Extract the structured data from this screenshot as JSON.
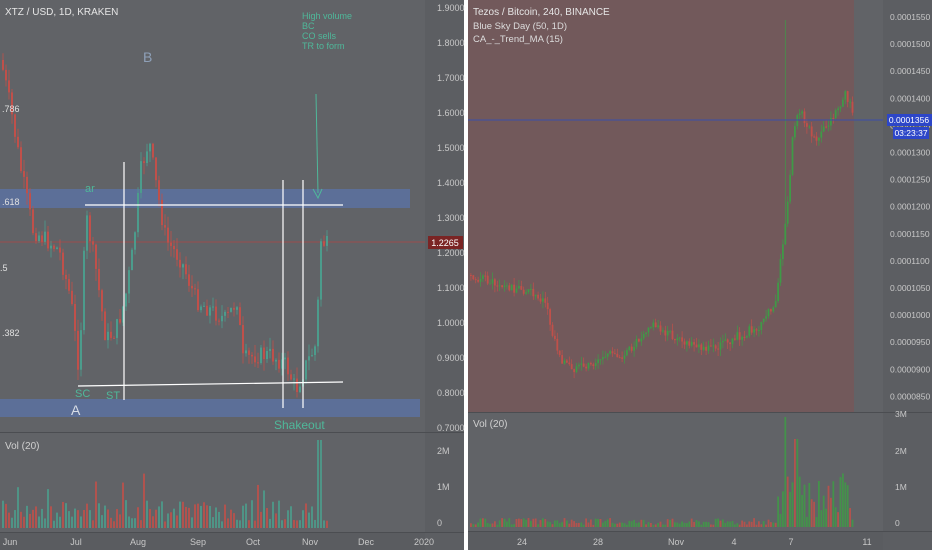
{
  "left_chart": {
    "title": "XTZ / USD, 1D, KRAKEN",
    "price_ticks": [
      "1.9000",
      "1.8000",
      "1.7000",
      "1.6000",
      "1.5000",
      "1.4000",
      "1.3000",
      "1.2000",
      "1.1000",
      "1.0000",
      "0.9000",
      "0.8000",
      "0.7000"
    ],
    "current_price": "1.2265",
    "fib_labels": [
      ".786",
      ".618",
      ".5",
      ".382"
    ],
    "annotations": {
      "B": "B",
      "A": "A",
      "ar": "ar",
      "sc": "SC",
      "st": "ST",
      "shakeout": "Shakeout",
      "note": [
        "High volume",
        "BC",
        "CO sells",
        "TR to form"
      ]
    },
    "volume_title": "Vol (20)",
    "volume_ticks": [
      "2M",
      "1M",
      "0"
    ],
    "x_ticks": [
      "Jun",
      "Jul",
      "Aug",
      "Sep",
      "Oct",
      "Nov",
      "Dec",
      "2020"
    ],
    "colors": {
      "up": "#4c9c8c",
      "down": "#c0504a",
      "zone": "#5b73a8",
      "text": "#9aa0a8"
    }
  },
  "right_chart": {
    "title": "Tezos / Bitcoin, 240, BINANCE",
    "indicators": [
      "Blue Sky Day (50, 1D)",
      "CA_-_Trend_MA (15)"
    ],
    "price_ticks": [
      "0.0001550",
      "0.0001500",
      "0.0001450",
      "0.0001400",
      "0.0001350",
      "0.0001300",
      "0.0001250",
      "0.0001200",
      "0.0001150",
      "0.0001100",
      "0.0001050",
      "0.0001000",
      "0.0000950",
      "0.0000900",
      "0.0000850"
    ],
    "current_price": "0.0001356",
    "countdown": "03:23:37",
    "volume_title": "Vol (20)",
    "volume_ticks": [
      "3M",
      "2M",
      "1M",
      "0"
    ],
    "x_ticks": [
      "24",
      "28",
      "Nov",
      "4",
      "7",
      "11"
    ],
    "colors": {
      "up": "#3f9a47",
      "down": "#c0504a",
      "highlight": "#7a5a5a",
      "priceline": "#3a4ea8"
    }
  }
}
